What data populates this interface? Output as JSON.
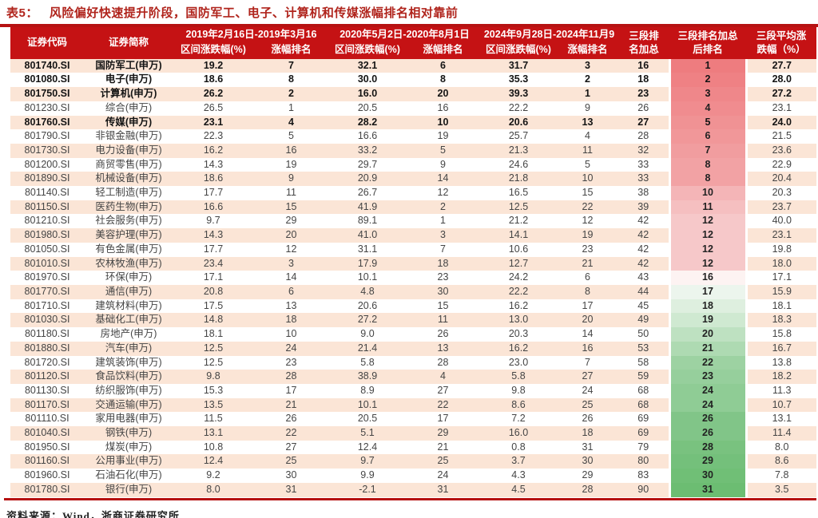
{
  "title_prefix": "表5：",
  "title_text": "风险偏好快速提升阶段，国防军工、电子、计算机和传媒涨幅排名相对靠前",
  "source_note": "资料来源：Wind，浙商证券研究所",
  "colors": {
    "header_bg": "#c51214",
    "title_red": "#b0241c",
    "stripe": "#fbe5d6",
    "rule": "#b61212",
    "rank_scale_stops": [
      [
        1,
        "#ee7c7f"
      ],
      [
        8,
        "#f2a2a4"
      ],
      [
        12,
        "#f6c8c9"
      ],
      [
        16,
        "#fdf3f2"
      ],
      [
        17,
        "#ecf5ed"
      ],
      [
        19,
        "#cfe9d1"
      ],
      [
        22,
        "#9dd2a2"
      ],
      [
        26,
        "#81c588"
      ],
      [
        31,
        "#6cbd72"
      ]
    ]
  },
  "table": {
    "header": {
      "code": "证券代码",
      "name": "证券简称",
      "period1": "2019年2月16日-2019年3月16",
      "period2": "2020年5月2日-2020年8月1日",
      "period3": "2024年9月28日-2024年11月9",
      "chg_label": "区间涨跌幅(%)",
      "rank_label": "涨幅排名",
      "sum_label": "三段排\n名加总",
      "final_label": "三段排名加总\n后排名",
      "avg_label": "三段平均涨\n跌幅（%）"
    },
    "rows": [
      {
        "code": "801740.SI",
        "name": "国防军工(申万)",
        "chg1": "19.2",
        "rank1": "7",
        "chg2": "32.1",
        "rank2": "6",
        "chg3": "31.7",
        "rank3": "3",
        "sum": "16",
        "final": "1",
        "avg": "27.7",
        "bold": true
      },
      {
        "code": "801080.SI",
        "name": "电子(申万)",
        "chg1": "18.6",
        "rank1": "8",
        "chg2": "30.0",
        "rank2": "8",
        "chg3": "35.3",
        "rank3": "2",
        "sum": "18",
        "final": "2",
        "avg": "28.0",
        "bold": true
      },
      {
        "code": "801750.SI",
        "name": "计算机(申万)",
        "chg1": "26.2",
        "rank1": "2",
        "chg2": "16.0",
        "rank2": "20",
        "chg3": "39.3",
        "rank3": "1",
        "sum": "23",
        "final": "3",
        "avg": "27.2",
        "bold": true
      },
      {
        "code": "801230.SI",
        "name": "综合(申万)",
        "chg1": "26.5",
        "rank1": "1",
        "chg2": "20.5",
        "rank2": "16",
        "chg3": "22.2",
        "rank3": "9",
        "sum": "26",
        "final": "4",
        "avg": "23.1",
        "bold": false
      },
      {
        "code": "801760.SI",
        "name": "传媒(申万)",
        "chg1": "23.1",
        "rank1": "4",
        "chg2": "28.2",
        "rank2": "10",
        "chg3": "20.6",
        "rank3": "13",
        "sum": "27",
        "final": "5",
        "avg": "24.0",
        "bold": true
      },
      {
        "code": "801790.SI",
        "name": "非银金融(申万)",
        "chg1": "22.3",
        "rank1": "5",
        "chg2": "16.6",
        "rank2": "19",
        "chg3": "25.7",
        "rank3": "4",
        "sum": "28",
        "final": "6",
        "avg": "21.5",
        "bold": false
      },
      {
        "code": "801730.SI",
        "name": "电力设备(申万)",
        "chg1": "16.2",
        "rank1": "16",
        "chg2": "33.2",
        "rank2": "5",
        "chg3": "21.3",
        "rank3": "11",
        "sum": "32",
        "final": "7",
        "avg": "23.6",
        "bold": false
      },
      {
        "code": "801200.SI",
        "name": "商贸零售(申万)",
        "chg1": "14.3",
        "rank1": "19",
        "chg2": "29.7",
        "rank2": "9",
        "chg3": "24.6",
        "rank3": "5",
        "sum": "33",
        "final": "8",
        "avg": "22.9",
        "bold": false
      },
      {
        "code": "801890.SI",
        "name": "机械设备(申万)",
        "chg1": "18.6",
        "rank1": "9",
        "chg2": "20.9",
        "rank2": "14",
        "chg3": "21.8",
        "rank3": "10",
        "sum": "33",
        "final": "8",
        "avg": "20.4",
        "bold": false
      },
      {
        "code": "801140.SI",
        "name": "轻工制造(申万)",
        "chg1": "17.7",
        "rank1": "11",
        "chg2": "26.7",
        "rank2": "12",
        "chg3": "16.5",
        "rank3": "15",
        "sum": "38",
        "final": "10",
        "avg": "20.3",
        "bold": false
      },
      {
        "code": "801150.SI",
        "name": "医药生物(申万)",
        "chg1": "16.6",
        "rank1": "15",
        "chg2": "41.9",
        "rank2": "2",
        "chg3": "12.5",
        "rank3": "22",
        "sum": "39",
        "final": "11",
        "avg": "23.7",
        "bold": false
      },
      {
        "code": "801210.SI",
        "name": "社会服务(申万)",
        "chg1": "9.7",
        "rank1": "29",
        "chg2": "89.1",
        "rank2": "1",
        "chg3": "21.2",
        "rank3": "12",
        "sum": "42",
        "final": "12",
        "avg": "40.0",
        "bold": false
      },
      {
        "code": "801980.SI",
        "name": "美容护理(申万)",
        "chg1": "14.3",
        "rank1": "20",
        "chg2": "41.0",
        "rank2": "3",
        "chg3": "14.1",
        "rank3": "19",
        "sum": "42",
        "final": "12",
        "avg": "23.1",
        "bold": false
      },
      {
        "code": "801050.SI",
        "name": "有色金属(申万)",
        "chg1": "17.7",
        "rank1": "12",
        "chg2": "31.1",
        "rank2": "7",
        "chg3": "10.6",
        "rank3": "23",
        "sum": "42",
        "final": "12",
        "avg": "19.8",
        "bold": false
      },
      {
        "code": "801010.SI",
        "name": "农林牧渔(申万)",
        "chg1": "23.4",
        "rank1": "3",
        "chg2": "17.9",
        "rank2": "18",
        "chg3": "12.7",
        "rank3": "21",
        "sum": "42",
        "final": "12",
        "avg": "18.0",
        "bold": false
      },
      {
        "code": "801970.SI",
        "name": "环保(申万)",
        "chg1": "17.1",
        "rank1": "14",
        "chg2": "10.1",
        "rank2": "23",
        "chg3": "24.2",
        "rank3": "6",
        "sum": "43",
        "final": "16",
        "avg": "17.1",
        "bold": false
      },
      {
        "code": "801770.SI",
        "name": "通信(申万)",
        "chg1": "20.8",
        "rank1": "6",
        "chg2": "4.8",
        "rank2": "30",
        "chg3": "22.2",
        "rank3": "8",
        "sum": "44",
        "final": "17",
        "avg": "15.9",
        "bold": false
      },
      {
        "code": "801710.SI",
        "name": "建筑材料(申万)",
        "chg1": "17.5",
        "rank1": "13",
        "chg2": "20.6",
        "rank2": "15",
        "chg3": "16.2",
        "rank3": "17",
        "sum": "45",
        "final": "18",
        "avg": "18.1",
        "bold": false
      },
      {
        "code": "801030.SI",
        "name": "基础化工(申万)",
        "chg1": "14.8",
        "rank1": "18",
        "chg2": "27.2",
        "rank2": "11",
        "chg3": "13.0",
        "rank3": "20",
        "sum": "49",
        "final": "19",
        "avg": "18.3",
        "bold": false
      },
      {
        "code": "801180.SI",
        "name": "房地产(申万)",
        "chg1": "18.1",
        "rank1": "10",
        "chg2": "9.0",
        "rank2": "26",
        "chg3": "20.3",
        "rank3": "14",
        "sum": "50",
        "final": "20",
        "avg": "15.8",
        "bold": false
      },
      {
        "code": "801880.SI",
        "name": "汽车(申万)",
        "chg1": "12.5",
        "rank1": "24",
        "chg2": "21.4",
        "rank2": "13",
        "chg3": "16.2",
        "rank3": "16",
        "sum": "53",
        "final": "21",
        "avg": "16.7",
        "bold": false
      },
      {
        "code": "801720.SI",
        "name": "建筑装饰(申万)",
        "chg1": "12.5",
        "rank1": "23",
        "chg2": "5.8",
        "rank2": "28",
        "chg3": "23.0",
        "rank3": "7",
        "sum": "58",
        "final": "22",
        "avg": "13.8",
        "bold": false
      },
      {
        "code": "801120.SI",
        "name": "食品饮料(申万)",
        "chg1": "9.8",
        "rank1": "28",
        "chg2": "38.9",
        "rank2": "4",
        "chg3": "5.8",
        "rank3": "27",
        "sum": "59",
        "final": "23",
        "avg": "18.2",
        "bold": false
      },
      {
        "code": "801130.SI",
        "name": "纺织服饰(申万)",
        "chg1": "15.3",
        "rank1": "17",
        "chg2": "8.9",
        "rank2": "27",
        "chg3": "9.8",
        "rank3": "24",
        "sum": "68",
        "final": "24",
        "avg": "11.3",
        "bold": false
      },
      {
        "code": "801170.SI",
        "name": "交通运输(申万)",
        "chg1": "13.5",
        "rank1": "21",
        "chg2": "10.1",
        "rank2": "22",
        "chg3": "8.6",
        "rank3": "25",
        "sum": "68",
        "final": "24",
        "avg": "10.7",
        "bold": false
      },
      {
        "code": "801110.SI",
        "name": "家用电器(申万)",
        "chg1": "11.5",
        "rank1": "26",
        "chg2": "20.5",
        "rank2": "17",
        "chg3": "7.2",
        "rank3": "26",
        "sum": "69",
        "final": "26",
        "avg": "13.1",
        "bold": false
      },
      {
        "code": "801040.SI",
        "name": "钢铁(申万)",
        "chg1": "13.1",
        "rank1": "22",
        "chg2": "5.1",
        "rank2": "29",
        "chg3": "16.0",
        "rank3": "18",
        "sum": "69",
        "final": "26",
        "avg": "11.4",
        "bold": false
      },
      {
        "code": "801950.SI",
        "name": "煤炭(申万)",
        "chg1": "10.8",
        "rank1": "27",
        "chg2": "12.4",
        "rank2": "21",
        "chg3": "0.8",
        "rank3": "31",
        "sum": "79",
        "final": "28",
        "avg": "8.0",
        "bold": false
      },
      {
        "code": "801160.SI",
        "name": "公用事业(申万)",
        "chg1": "12.4",
        "rank1": "25",
        "chg2": "9.7",
        "rank2": "25",
        "chg3": "3.7",
        "rank3": "30",
        "sum": "80",
        "final": "29",
        "avg": "8.6",
        "bold": false
      },
      {
        "code": "801960.SI",
        "name": "石油石化(申万)",
        "chg1": "9.2",
        "rank1": "30",
        "chg2": "9.9",
        "rank2": "24",
        "chg3": "4.3",
        "rank3": "29",
        "sum": "83",
        "final": "30",
        "avg": "7.8",
        "bold": false
      },
      {
        "code": "801780.SI",
        "name": "银行(申万)",
        "chg1": "8.0",
        "rank1": "31",
        "chg2": "-2.1",
        "rank2": "31",
        "chg3": "4.5",
        "rank3": "28",
        "sum": "90",
        "final": "31",
        "avg": "3.5",
        "bold": false
      }
    ]
  }
}
